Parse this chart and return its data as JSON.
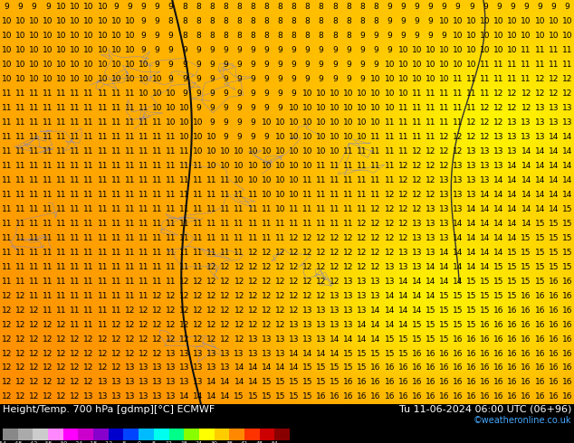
{
  "title_left": "Height/Temp. 700 hPa [gdmp][°C] ECMWF",
  "title_right": "Tu 11-06-2024 06:00 UTC (06+96)",
  "credit": "©weatheronline.co.uk",
  "bg_main": "#FFA500",
  "bg_light_patch": "#FFDD00",
  "colorbar_colors": [
    "#888888",
    "#AAAAAA",
    "#CCCCCC",
    "#FF88FF",
    "#FF00FF",
    "#CC00CC",
    "#8800CC",
    "#0000CC",
    "#0044FF",
    "#00BBFF",
    "#00FFEE",
    "#00FF88",
    "#88FF00",
    "#FFFF00",
    "#FFCC00",
    "#FF8800",
    "#FF3300",
    "#CC0000",
    "#880000"
  ],
  "colorbar_labels": [
    "-54",
    "-48",
    "-42",
    "-38",
    "-30",
    "-24",
    "-18",
    "-12",
    "-8",
    "0",
    "8",
    "12",
    "18",
    "24",
    "30",
    "38",
    "42",
    "48",
    "54"
  ],
  "bottom_bar_color": "#000000",
  "font_size_numbers": 6.5,
  "font_size_title": 8,
  "font_size_credit": 7,
  "text_color": "#000000",
  "title_color": "#FFFFFF",
  "credit_color": "#44AAFF",
  "grid_rows": 28,
  "grid_cols": 42,
  "number_grid": [
    [
      9,
      9,
      9,
      9,
      10,
      10,
      10,
      10,
      9,
      9,
      9,
      9,
      9,
      8,
      8,
      8,
      8,
      8,
      8,
      8,
      8,
      8,
      8,
      8,
      8,
      8,
      8,
      8,
      9,
      9,
      9,
      9,
      9,
      9,
      9,
      9,
      9,
      9,
      9,
      9,
      9,
      9
    ],
    [
      10,
      10,
      10,
      10,
      10,
      10,
      10,
      10,
      10,
      10,
      9,
      9,
      8,
      8,
      8,
      8,
      8,
      8,
      8,
      8,
      8,
      8,
      8,
      8,
      8,
      8,
      8,
      8,
      9,
      9,
      9,
      9,
      10,
      10,
      10,
      10,
      10,
      10,
      10,
      10,
      10,
      10
    ],
    [
      10,
      10,
      10,
      10,
      10,
      10,
      10,
      10,
      10,
      10,
      9,
      9,
      9,
      8,
      8,
      8,
      8,
      8,
      8,
      8,
      8,
      8,
      8,
      8,
      8,
      8,
      9,
      9,
      9,
      9,
      9,
      9,
      9,
      10,
      10,
      10,
      10,
      10,
      10,
      10,
      10,
      10
    ],
    [
      10,
      10,
      10,
      10,
      10,
      10,
      10,
      10,
      10,
      10,
      9,
      9,
      9,
      9,
      9,
      9,
      9,
      9,
      9,
      9,
      9,
      9,
      9,
      9,
      9,
      9,
      9,
      9,
      9,
      10,
      10,
      10,
      10,
      10,
      10,
      10,
      10,
      10,
      11,
      11,
      11,
      11
    ],
    [
      10,
      10,
      10,
      10,
      10,
      10,
      10,
      10,
      10,
      10,
      10,
      9,
      9,
      9,
      9,
      9,
      9,
      9,
      9,
      9,
      9,
      9,
      9,
      9,
      9,
      9,
      9,
      9,
      10,
      10,
      10,
      10,
      10,
      10,
      10,
      11,
      11,
      11,
      11,
      11,
      11,
      11
    ],
    [
      10,
      10,
      10,
      10,
      10,
      10,
      10,
      10,
      10,
      10,
      10,
      10,
      9,
      9,
      9,
      9,
      9,
      9,
      9,
      9,
      9,
      9,
      9,
      9,
      9,
      9,
      9,
      10,
      10,
      10,
      10,
      10,
      10,
      11,
      11,
      11,
      11,
      11,
      11,
      12,
      12,
      12
    ],
    [
      11,
      11,
      11,
      11,
      11,
      11,
      11,
      11,
      11,
      11,
      10,
      10,
      10,
      9,
      9,
      9,
      9,
      9,
      9,
      9,
      9,
      9,
      10,
      10,
      10,
      10,
      10,
      10,
      10,
      10,
      11,
      11,
      11,
      11,
      11,
      11,
      12,
      12,
      12,
      12,
      12,
      12
    ],
    [
      11,
      11,
      11,
      11,
      11,
      11,
      11,
      11,
      11,
      11,
      11,
      10,
      10,
      10,
      9,
      9,
      9,
      9,
      9,
      9,
      9,
      10,
      10,
      10,
      10,
      10,
      10,
      10,
      10,
      11,
      11,
      11,
      11,
      11,
      11,
      12,
      12,
      12,
      12,
      13,
      13,
      13
    ],
    [
      11,
      11,
      11,
      11,
      11,
      11,
      11,
      11,
      11,
      11,
      11,
      11,
      10,
      10,
      10,
      9,
      9,
      9,
      9,
      10,
      10,
      10,
      10,
      10,
      10,
      10,
      10,
      10,
      11,
      11,
      11,
      11,
      11,
      11,
      12,
      12,
      12,
      13,
      13,
      13,
      13,
      13
    ],
    [
      11,
      11,
      11,
      11,
      11,
      11,
      11,
      11,
      11,
      11,
      11,
      11,
      11,
      10,
      10,
      10,
      9,
      9,
      9,
      9,
      10,
      10,
      10,
      10,
      10,
      10,
      10,
      11,
      11,
      11,
      11,
      11,
      12,
      12,
      12,
      12,
      13,
      13,
      13,
      13,
      14,
      14
    ],
    [
      11,
      11,
      11,
      11,
      11,
      11,
      11,
      11,
      11,
      11,
      11,
      11,
      11,
      11,
      10,
      10,
      10,
      10,
      10,
      10,
      10,
      10,
      10,
      10,
      10,
      11,
      11,
      11,
      11,
      11,
      12,
      12,
      12,
      12,
      13,
      13,
      13,
      13,
      14,
      14,
      14,
      14
    ],
    [
      11,
      11,
      11,
      11,
      11,
      11,
      11,
      11,
      11,
      11,
      11,
      11,
      11,
      11,
      11,
      10,
      10,
      10,
      10,
      10,
      10,
      10,
      10,
      11,
      11,
      11,
      11,
      11,
      11,
      12,
      12,
      12,
      12,
      13,
      13,
      13,
      13,
      14,
      14,
      14,
      14,
      14
    ],
    [
      11,
      11,
      11,
      11,
      11,
      11,
      11,
      11,
      11,
      11,
      11,
      11,
      11,
      11,
      11,
      11,
      11,
      10,
      10,
      10,
      10,
      10,
      11,
      11,
      11,
      11,
      11,
      11,
      11,
      12,
      12,
      12,
      13,
      13,
      13,
      13,
      14,
      14,
      14,
      14,
      14,
      14
    ],
    [
      11,
      11,
      11,
      11,
      11,
      11,
      11,
      11,
      11,
      11,
      11,
      11,
      11,
      11,
      11,
      11,
      11,
      11,
      11,
      10,
      10,
      10,
      11,
      11,
      11,
      11,
      11,
      11,
      12,
      12,
      12,
      12,
      13,
      13,
      13,
      14,
      14,
      14,
      14,
      14,
      14,
      14
    ],
    [
      11,
      11,
      11,
      11,
      11,
      11,
      11,
      11,
      11,
      11,
      11,
      11,
      11,
      11,
      11,
      11,
      11,
      11,
      11,
      11,
      10,
      11,
      11,
      11,
      11,
      11,
      11,
      12,
      12,
      12,
      12,
      13,
      13,
      13,
      14,
      14,
      14,
      14,
      14,
      14,
      14,
      15
    ],
    [
      11,
      11,
      11,
      11,
      11,
      11,
      11,
      11,
      11,
      11,
      11,
      11,
      11,
      11,
      11,
      11,
      11,
      11,
      11,
      11,
      11,
      11,
      11,
      11,
      11,
      11,
      12,
      12,
      12,
      12,
      13,
      13,
      13,
      14,
      14,
      14,
      14,
      14,
      14,
      15,
      15,
      15
    ],
    [
      11,
      11,
      11,
      11,
      11,
      11,
      11,
      11,
      11,
      11,
      11,
      11,
      11,
      11,
      11,
      11,
      11,
      11,
      11,
      11,
      11,
      12,
      12,
      12,
      12,
      12,
      12,
      12,
      12,
      12,
      13,
      13,
      13,
      14,
      14,
      14,
      14,
      14,
      15,
      15,
      15,
      15
    ],
    [
      11,
      11,
      11,
      11,
      11,
      11,
      11,
      11,
      11,
      11,
      11,
      11,
      11,
      11,
      11,
      11,
      11,
      11,
      12,
      12,
      12,
      12,
      12,
      12,
      12,
      12,
      12,
      12,
      12,
      13,
      13,
      13,
      14,
      14,
      14,
      14,
      14,
      15,
      15,
      15,
      15,
      15
    ],
    [
      11,
      11,
      11,
      11,
      11,
      11,
      11,
      11,
      11,
      11,
      11,
      11,
      11,
      11,
      11,
      12,
      12,
      12,
      12,
      12,
      12,
      12,
      12,
      12,
      12,
      12,
      12,
      12,
      13,
      13,
      13,
      14,
      14,
      14,
      14,
      14,
      15,
      15,
      15,
      15,
      15,
      15
    ],
    [
      11,
      11,
      11,
      11,
      11,
      11,
      11,
      11,
      11,
      11,
      11,
      11,
      11,
      12,
      12,
      12,
      12,
      12,
      12,
      12,
      12,
      12,
      12,
      12,
      12,
      13,
      13,
      13,
      13,
      14,
      14,
      14,
      14,
      14,
      15,
      15,
      15,
      15,
      15,
      15,
      16,
      16
    ],
    [
      12,
      12,
      11,
      11,
      11,
      11,
      11,
      11,
      11,
      11,
      11,
      12,
      12,
      12,
      12,
      12,
      12,
      12,
      12,
      12,
      12,
      12,
      12,
      12,
      13,
      13,
      13,
      13,
      14,
      14,
      14,
      14,
      15,
      15,
      15,
      15,
      15,
      15,
      16,
      16,
      16,
      16
    ],
    [
      12,
      12,
      12,
      11,
      11,
      11,
      11,
      11,
      11,
      12,
      12,
      12,
      12,
      12,
      12,
      12,
      12,
      12,
      12,
      12,
      12,
      12,
      13,
      13,
      13,
      13,
      13,
      14,
      14,
      14,
      14,
      15,
      15,
      15,
      15,
      15,
      16,
      16,
      16,
      16,
      16,
      16
    ],
    [
      12,
      12,
      12,
      12,
      12,
      11,
      11,
      11,
      12,
      12,
      12,
      12,
      12,
      12,
      12,
      12,
      12,
      12,
      12,
      12,
      12,
      13,
      13,
      13,
      13,
      13,
      14,
      14,
      14,
      14,
      15,
      15,
      15,
      15,
      15,
      16,
      16,
      16,
      16,
      16,
      16,
      16
    ],
    [
      12,
      12,
      12,
      12,
      12,
      12,
      12,
      12,
      12,
      12,
      12,
      12,
      12,
      12,
      12,
      12,
      12,
      12,
      13,
      13,
      13,
      13,
      13,
      13,
      14,
      14,
      14,
      14,
      15,
      15,
      15,
      15,
      15,
      16,
      16,
      16,
      16,
      16,
      16,
      16,
      16,
      16
    ],
    [
      12,
      12,
      12,
      12,
      12,
      12,
      12,
      12,
      12,
      12,
      12,
      12,
      13,
      13,
      13,
      13,
      13,
      13,
      13,
      13,
      13,
      14,
      14,
      14,
      14,
      15,
      15,
      15,
      15,
      15,
      16,
      16,
      16,
      16,
      16,
      16,
      16,
      16,
      16,
      16,
      16,
      16
    ],
    [
      12,
      12,
      12,
      12,
      12,
      12,
      12,
      12,
      12,
      13,
      13,
      13,
      13,
      13,
      13,
      13,
      13,
      14,
      14,
      14,
      14,
      14,
      15,
      15,
      15,
      15,
      15,
      16,
      16,
      16,
      16,
      16,
      16,
      16,
      16,
      16,
      16,
      16,
      16,
      16,
      16,
      16
    ],
    [
      12,
      12,
      12,
      12,
      12,
      12,
      12,
      13,
      13,
      13,
      13,
      13,
      13,
      13,
      13,
      14,
      14,
      14,
      14,
      15,
      15,
      15,
      15,
      15,
      15,
      16,
      16,
      16,
      16,
      16,
      16,
      16,
      16,
      16,
      16,
      16,
      16,
      16,
      16,
      16,
      16,
      16
    ],
    [
      12,
      12,
      12,
      12,
      12,
      12,
      13,
      13,
      13,
      13,
      13,
      13,
      13,
      14,
      14,
      14,
      14,
      15,
      15,
      15,
      15,
      15,
      15,
      16,
      16,
      16,
      16,
      16,
      16,
      16,
      16,
      16,
      16,
      16,
      16,
      16,
      16,
      16,
      16,
      16,
      16,
      16
    ]
  ]
}
